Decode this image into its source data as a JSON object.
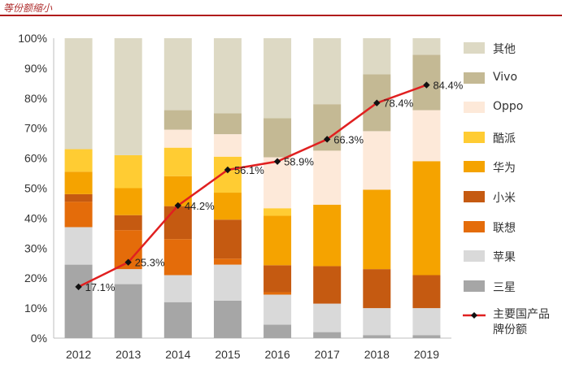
{
  "header": {
    "title": "等份额缩小"
  },
  "chart_data": {
    "type": "bar",
    "stacked": true,
    "categories": [
      "2012",
      "2013",
      "2014",
      "2015",
      "2016",
      "2017",
      "2018",
      "2019"
    ],
    "ylim": [
      0,
      100
    ],
    "yticks": [
      "0%",
      "10%",
      "20%",
      "30%",
      "40%",
      "50%",
      "60%",
      "70%",
      "80%",
      "90%",
      "100%"
    ],
    "grid": false,
    "legend_position": "right",
    "series": [
      {
        "name": "三星",
        "color": "#a6a6a6",
        "values": [
          24.5,
          18,
          12,
          12.5,
          4.5,
          2,
          1,
          1
        ]
      },
      {
        "name": "苹果",
        "color": "#d9d9d9",
        "values": [
          12.5,
          5,
          9,
          12,
          10,
          9.5,
          9,
          9
        ]
      },
      {
        "name": "联想",
        "color": "#e46c0a",
        "values": [
          8.5,
          13,
          12,
          2,
          0.8,
          0,
          0,
          0
        ]
      },
      {
        "name": "小米",
        "color": "#c55a11",
        "values": [
          2.5,
          5,
          11,
          13,
          9,
          12.5,
          13,
          11
        ]
      },
      {
        "name": "华为",
        "color": "#f5a300",
        "values": [
          7.5,
          9,
          10,
          9,
          16.5,
          20.5,
          26.5,
          38
        ]
      },
      {
        "name": "酷派",
        "color": "#ffcc33",
        "values": [
          7.5,
          11,
          9.5,
          12,
          2.5,
          0,
          0,
          0
        ]
      },
      {
        "name": "Oppo",
        "color": "#fde9d9",
        "values": [
          0,
          0,
          6,
          7.5,
          17,
          18,
          19.5,
          17
        ]
      },
      {
        "name": "Vivo",
        "color": "#c4b994",
        "values": [
          0,
          0,
          6.5,
          7,
          13,
          15.5,
          19,
          18.5
        ]
      },
      {
        "name": "其他",
        "color": "#ddd9c4",
        "values": [
          37,
          39,
          24,
          25,
          26.7,
          22,
          12,
          5.5
        ]
      }
    ],
    "line_series": {
      "name": "主要国产品牌份额",
      "color": "#e02020",
      "values": [
        17.1,
        25.3,
        44.2,
        56.1,
        58.9,
        66.3,
        78.4,
        84.4
      ],
      "labels": [
        "17.1%",
        "25.3%",
        "44.2%",
        "56.1%",
        "58.9%",
        "66.3%",
        "78.4%",
        "84.4%"
      ]
    },
    "legend_order": [
      "其他",
      "Vivo",
      "Oppo",
      "酷派",
      "华为",
      "小米",
      "联想",
      "苹果",
      "三星"
    ]
  }
}
